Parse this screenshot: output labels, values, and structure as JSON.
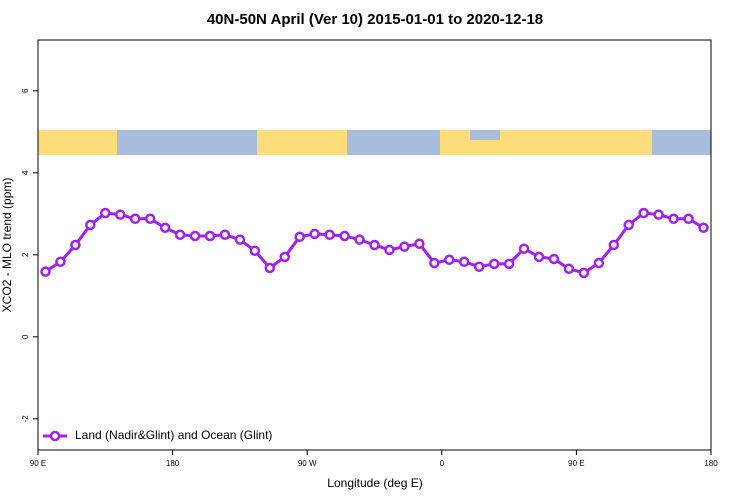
{
  "chart_data": {
    "type": "line",
    "title": "40N-50N April (Ver 10)   2015-01-01 to 2020-12-18",
    "xlabel": "Longitude (deg E)",
    "ylabel": "XCO2 - MLO trend (ppm)",
    "x": [
      95,
      105,
      115,
      125,
      135,
      145,
      155,
      165,
      175,
      185,
      195,
      205,
      215,
      225,
      235,
      245,
      255,
      265,
      275,
      285,
      295,
      305,
      315,
      325,
      335,
      345,
      355,
      365,
      375,
      385,
      395,
      405,
      415,
      425,
      435,
      445,
      455,
      465,
      475,
      485,
      495,
      505,
      515,
      525,
      535
    ],
    "series": [
      {
        "name": "Land (Nadir&Glint) and Ocean (Glint)",
        "color": "#a020f0",
        "values": [
          1.59,
          1.83,
          2.24,
          2.73,
          3.02,
          2.98,
          2.88,
          2.88,
          2.66,
          2.49,
          2.46,
          2.46,
          2.49,
          2.37,
          2.1,
          1.68,
          1.95,
          2.44,
          2.51,
          2.49,
          2.46,
          2.37,
          2.24,
          2.12,
          2.2,
          2.27,
          1.8,
          1.88,
          1.83,
          1.71,
          1.78,
          1.78,
          2.15,
          1.95,
          1.9,
          1.66,
          1.56,
          1.8,
          2.24,
          2.73,
          3.02,
          2.98,
          2.88,
          2.88,
          2.66
        ]
      }
    ],
    "xlim": [
      90,
      540
    ],
    "xticks": [
      {
        "value": 90,
        "label": "90 E"
      },
      180,
      {
        "value": 270,
        "label": "90 W"
      },
      {
        "value": 360,
        "label": "0"
      },
      {
        "value": 450,
        "label": "90 E"
      },
      {
        "value": 540,
        "label": "180"
      }
    ],
    "ylim": [
      -2.76,
      7.24
    ],
    "yticks": [
      -2,
      0,
      2,
      4,
      6
    ],
    "legend": "bottomleft"
  }
}
